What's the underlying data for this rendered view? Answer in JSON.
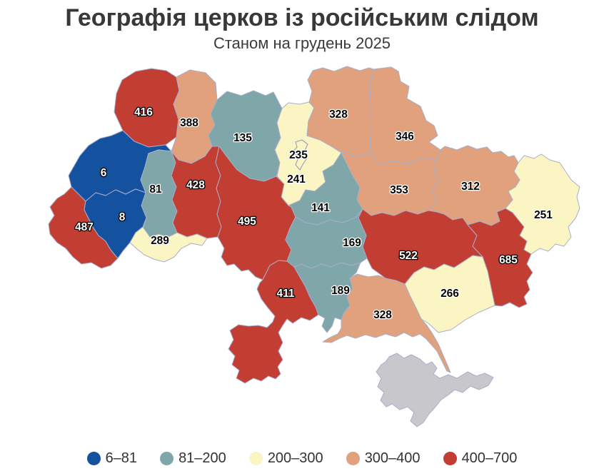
{
  "title": "Географія церков із російським слідом",
  "subtitle": "Станом на грудень 2025",
  "palette": {
    "b1": "#14519e",
    "b2": "#7fa6a8",
    "b3": "#fbf4c3",
    "b4": "#e0a17c",
    "b5": "#c23d32",
    "no_data": "#c8c8cc"
  },
  "legend": {
    "items": [
      {
        "label": "6–81",
        "color_key": "b1"
      },
      {
        "label": "81–200",
        "color_key": "b2"
      },
      {
        "label": "200–300",
        "color_key": "b3"
      },
      {
        "label": "300–400",
        "color_key": "b4"
      },
      {
        "label": "400–700",
        "color_key": "b5"
      }
    ]
  },
  "chart_data": {
    "type": "choropleth",
    "title": "Географія церков із російським слідом",
    "subtitle": "Станом на грудень 2025",
    "legend_buckets": [
      "6–81",
      "81–200",
      "200–300",
      "300–400",
      "400–700"
    ],
    "regions": [
      {
        "name": "volyn",
        "value": 416,
        "color_key": "b5",
        "label_style": "light"
      },
      {
        "name": "rivne",
        "value": 388,
        "color_key": "b4",
        "label_style": "dark"
      },
      {
        "name": "zhytomyr",
        "value": 135,
        "color_key": "b2",
        "label_style": "dark"
      },
      {
        "name": "kyiv-oblast",
        "value": 241,
        "color_key": "b3",
        "label_style": "dark"
      },
      {
        "name": "chernihiv",
        "value": 328,
        "color_key": "b4",
        "label_style": "dark"
      },
      {
        "name": "sumy",
        "value": 346,
        "color_key": "b4",
        "label_style": "dark"
      },
      {
        "name": "lviv",
        "value": 6,
        "color_key": "b1",
        "label_style": "light"
      },
      {
        "name": "ternopil",
        "value": 81,
        "color_key": "b2",
        "label_style": "dark"
      },
      {
        "name": "khmelnytskyi",
        "value": 428,
        "color_key": "b5",
        "label_style": "light"
      },
      {
        "name": "vinnytsia",
        "value": 495,
        "color_key": "b5",
        "label_style": "light"
      },
      {
        "name": "cherkasy",
        "value": 141,
        "color_key": "b2",
        "label_style": "dark"
      },
      {
        "name": "poltava",
        "value": 353,
        "color_key": "b4",
        "label_style": "dark"
      },
      {
        "name": "kharkiv",
        "value": 312,
        "color_key": "b4",
        "label_style": "dark"
      },
      {
        "name": "luhansk",
        "value": 251,
        "color_key": "b3",
        "label_style": "dark"
      },
      {
        "name": "zakarpattia",
        "value": 487,
        "color_key": "b5",
        "label_style": "light"
      },
      {
        "name": "ivano-frankivsk",
        "value": 8,
        "color_key": "b1",
        "label_style": "light"
      },
      {
        "name": "chernivtsi",
        "value": 289,
        "color_key": "b3",
        "label_style": "dark"
      },
      {
        "name": "kirovohrad",
        "value": 169,
        "color_key": "b2",
        "label_style": "dark"
      },
      {
        "name": "dnipropetrovsk",
        "value": 522,
        "color_key": "b5",
        "label_style": "light"
      },
      {
        "name": "donetsk",
        "value": 685,
        "color_key": "b5",
        "label_style": "light"
      },
      {
        "name": "zaporizhzhia",
        "value": 266,
        "color_key": "b3",
        "label_style": "dark"
      },
      {
        "name": "odesa",
        "value": 411,
        "color_key": "b5",
        "label_style": "light"
      },
      {
        "name": "mykolaiv",
        "value": 189,
        "color_key": "b2",
        "label_style": "dark"
      },
      {
        "name": "kherson",
        "value": 328,
        "color_key": "b4",
        "label_style": "dark"
      },
      {
        "name": "kyiv-city",
        "value": 235,
        "color_key": "b3",
        "label_style": "dark"
      },
      {
        "name": "crimea",
        "value": null,
        "color_key": "no_data",
        "label_style": "none"
      }
    ]
  }
}
